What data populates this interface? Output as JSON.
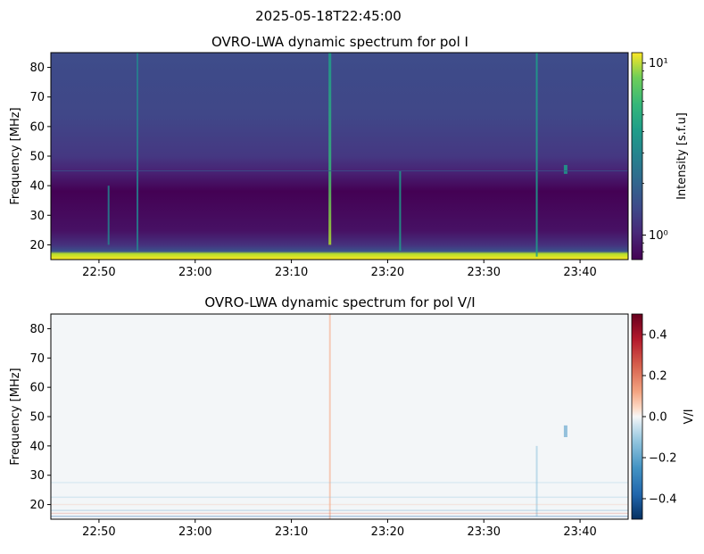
{
  "suptitle": "2025-05-18T22:45:00",
  "chart_data": [
    {
      "type": "heatmap",
      "title": "OVRO-LWA dynamic spectrum for pol I",
      "xlabel": "",
      "ylabel": "Frequency [MHz]",
      "x_ticks": [
        "22:50",
        "23:00",
        "23:10",
        "23:20",
        "23:30",
        "23:40"
      ],
      "x_tick_minutes": [
        5,
        15,
        25,
        35,
        45,
        55
      ],
      "xlim_minutes": [
        0,
        60
      ],
      "y_ticks": [
        20,
        30,
        40,
        50,
        60,
        70,
        80
      ],
      "ylim": [
        15,
        85
      ],
      "colormap": "viridis",
      "colorbar": {
        "label": "Intensity [s.f.u]",
        "scale": "log",
        "range": [
          0.72,
          11.5
        ],
        "tick_labels": [
          "10⁰",
          "10¹"
        ],
        "tick_values": [
          1,
          10
        ]
      },
      "features": [
        {
          "kind": "vertical-burst",
          "time_min": 29.0,
          "freq_range": [
            20,
            85
          ],
          "intensity": 6
        },
        {
          "kind": "vertical-burst",
          "time_min": 36.3,
          "freq_range": [
            18,
            45
          ],
          "intensity": 4
        },
        {
          "kind": "vertical-burst",
          "time_min": 50.5,
          "freq_range": [
            16,
            85
          ],
          "intensity": 4
        },
        {
          "kind": "vertical-burst",
          "time_min": 9.0,
          "freq_range": [
            18,
            85
          ],
          "intensity": 3
        },
        {
          "kind": "vertical-burst",
          "time_min": 6.0,
          "freq_range": [
            20,
            40
          ],
          "intensity": 3
        },
        {
          "kind": "compact-source",
          "time_min": 53.5,
          "freq_range": [
            44,
            47
          ],
          "intensity": 4
        }
      ]
    },
    {
      "type": "heatmap",
      "title": "OVRO-LWA dynamic spectrum for pol V/I",
      "xlabel": "",
      "ylabel": "Frequency [MHz]",
      "x_ticks": [
        "22:50",
        "23:00",
        "23:10",
        "23:20",
        "23:30",
        "23:40"
      ],
      "x_tick_minutes": [
        5,
        15,
        25,
        35,
        45,
        55
      ],
      "xlim_minutes": [
        0,
        60
      ],
      "y_ticks": [
        20,
        30,
        40,
        50,
        60,
        70,
        80
      ],
      "ylim": [
        15,
        85
      ],
      "colormap": "RdBu_r",
      "colorbar": {
        "label": "V/I",
        "scale": "linear",
        "range": [
          -0.5,
          0.5
        ],
        "tick_labels": [
          "0.4",
          "0.2",
          "0.0",
          "−0.2",
          "−0.4"
        ],
        "tick_values": [
          0.4,
          0.2,
          0.0,
          -0.2,
          -0.4
        ]
      },
      "features": [
        {
          "kind": "vertical-streak",
          "time_min": 29.0,
          "freq_range": [
            15,
            85
          ],
          "value": 0.08
        },
        {
          "kind": "vertical-streak",
          "time_min": 50.5,
          "freq_range": [
            16,
            40
          ],
          "value": -0.18
        },
        {
          "kind": "compact-source",
          "time_min": 53.5,
          "freq_range": [
            43,
            47
          ],
          "value": -0.35
        }
      ]
    }
  ]
}
